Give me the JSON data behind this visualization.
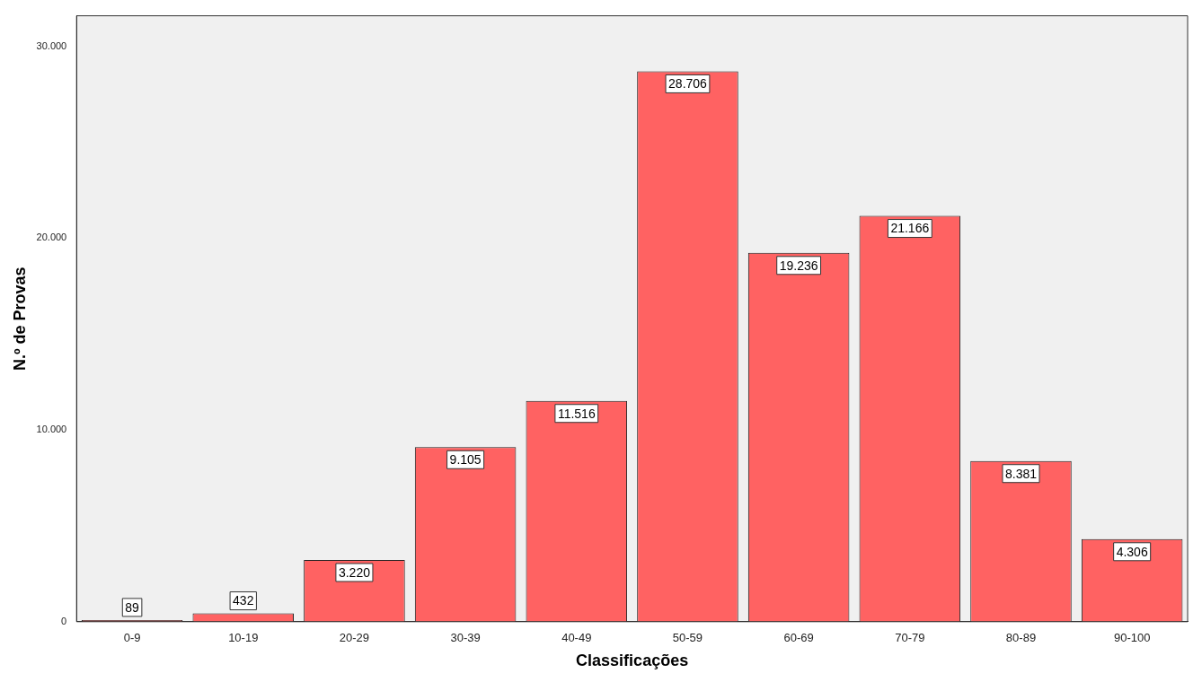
{
  "chart_data": {
    "type": "bar",
    "xlabel": "Classificações",
    "ylabel": "N.º de Provas",
    "categories": [
      "0-9",
      "10-19",
      "20-29",
      "30-39",
      "40-49",
      "50-59",
      "60-69",
      "70-79",
      "80-89",
      "90-100"
    ],
    "values": [
      89,
      432,
      3220,
      9105,
      11516,
      28706,
      19236,
      21166,
      8381,
      4306
    ],
    "value_labels": [
      "89",
      "432",
      "3.220",
      "9.105",
      "11.516",
      "28.706",
      "19.236",
      "21.166",
      "8.381",
      "4.306"
    ],
    "color": "#ff6262",
    "ylim": [
      0,
      31600
    ],
    "yticks": [
      {
        "value": 0,
        "label": "0"
      },
      {
        "value": 10000,
        "label": "10.000"
      },
      {
        "value": 20000,
        "label": "20.000"
      },
      {
        "value": 30000,
        "label": "30.000"
      }
    ],
    "grid": false,
    "legend": false
  }
}
